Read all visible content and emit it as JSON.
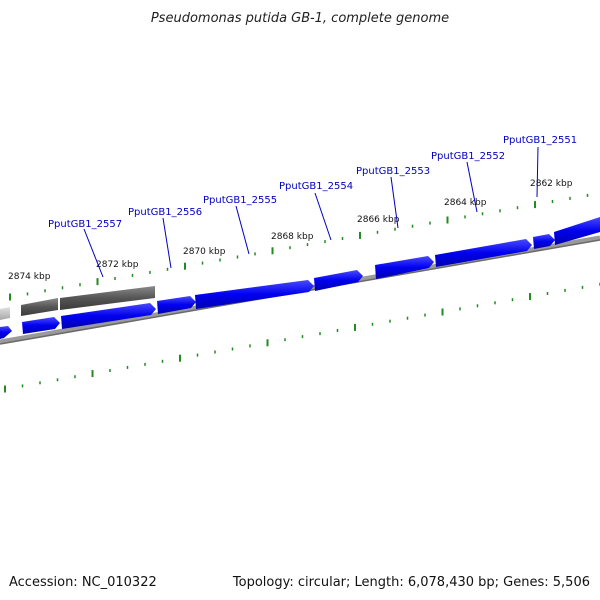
{
  "title": "Pseudomonas putida GB-1, complete genome",
  "footer": {
    "accession": "Accession: NC_010322",
    "summary": "Topology: circular; Length: 6,078,430 bp; Genes: 5,506"
  },
  "colors": {
    "forward_gene": "#0000ee",
    "reverse_gene": "#5a5a5a",
    "backbone": "#808080",
    "tick": "#228b22",
    "label": "#0000c0"
  },
  "kbp_labels": [
    "2874 kbp",
    "2872 kbp",
    "2870 kbp",
    "2868 kbp",
    "2866 kbp",
    "2864 kbp",
    "2862 kbp"
  ],
  "gene_labels": [
    "PputGB1_2557",
    "PputGB1_2556",
    "PputGB1_2555",
    "PputGB1_2554",
    "PputGB1_2553",
    "PputGB1_2552",
    "PputGB1_2551"
  ]
}
